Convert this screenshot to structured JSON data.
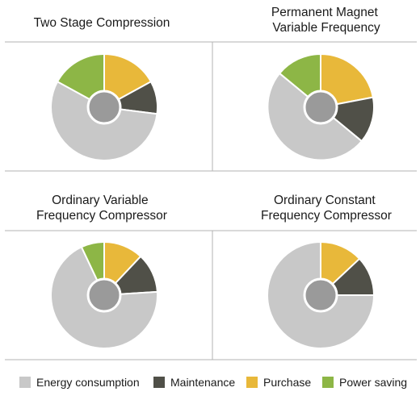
{
  "chart_data": [
    {
      "type": "pie",
      "title": [
        "Two Stage Compression"
      ],
      "categories": [
        "Energy consumption",
        "Maintenance",
        "Purchase",
        "Power saving"
      ],
      "values": [
        56,
        10,
        17,
        17
      ]
    },
    {
      "type": "pie",
      "title": [
        "Permanent Magnet",
        "Variable Frequency"
      ],
      "categories": [
        "Energy consumption",
        "Maintenance",
        "Purchase",
        "Power saving"
      ],
      "values": [
        50,
        14,
        22,
        14
      ]
    },
    {
      "type": "pie",
      "title": [
        "Ordinary Variable",
        "Frequency Compressor"
      ],
      "categories": [
        "Energy consumption",
        "Maintenance",
        "Purchase",
        "Power saving"
      ],
      "values": [
        69,
        12,
        12,
        7
      ]
    },
    {
      "type": "pie",
      "title": [
        "Ordinary Constant",
        "Frequency Compressor"
      ],
      "categories": [
        "Energy consumption",
        "Maintenance",
        "Purchase",
        "Power saving"
      ],
      "values": [
        75,
        12,
        13,
        0
      ]
    }
  ],
  "legend": {
    "placement": "bottom",
    "items": [
      {
        "label": "Energy consumption",
        "color": "#c8c8c8"
      },
      {
        "label": "Maintenance",
        "color": "#505048"
      },
      {
        "label": "Purchase",
        "color": "#e8b83a"
      },
      {
        "label": "Power saving",
        "color": "#8db646"
      }
    ]
  },
  "colors": {
    "center_hole": "#9a9a9a",
    "separator": "#ffffff",
    "panel_border": "#b3b3b3"
  }
}
